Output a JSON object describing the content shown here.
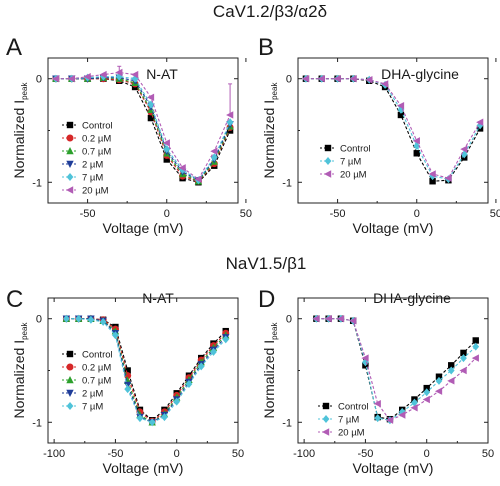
{
  "headings": {
    "top": "CaV1.2/β3/α2δ",
    "bottom": "NaV1.5/β1"
  },
  "chart_data": [
    {
      "panel": "A",
      "title": "N-AT",
      "type": "line",
      "xlabel": "Voltage (mV)",
      "ylabel": "Normalized I",
      "ylabel_sub": "peak",
      "xlim": [
        -75,
        45
      ],
      "ylim": [
        -1.2,
        0.2
      ],
      "xticks": [
        -50,
        0,
        50
      ],
      "xtick_labels": [
        "-50",
        "0",
        "50"
      ],
      "yticks": [
        0,
        -1
      ],
      "ytick_labels": [
        "0",
        "-1"
      ],
      "legend_position": "lower-left",
      "x": [
        -70,
        -60,
        -50,
        -40,
        -30,
        -20,
        -10,
        0,
        10,
        20,
        30,
        40
      ],
      "series": [
        {
          "name": "Control",
          "color": "#000000",
          "marker": "square",
          "values": [
            0,
            0,
            0,
            0,
            -0.02,
            -0.08,
            -0.38,
            -0.78,
            -0.96,
            -1.0,
            -0.84,
            -0.5
          ]
        },
        {
          "name": "0.2 µM",
          "color": "#d62728",
          "marker": "circle",
          "values": [
            0,
            0,
            0,
            0,
            -0.01,
            -0.05,
            -0.32,
            -0.74,
            -0.94,
            -0.99,
            -0.82,
            -0.47
          ]
        },
        {
          "name": "0.7 µM",
          "color": "#2ca02c",
          "marker": "triangle-up",
          "values": [
            0,
            0,
            0,
            0.01,
            0,
            -0.04,
            -0.3,
            -0.72,
            -0.92,
            -0.99,
            -0.8,
            -0.46
          ]
        },
        {
          "name": "2 µM",
          "color": "#1f3d99",
          "marker": "triangle-down",
          "values": [
            0,
            0,
            0,
            0.01,
            0.01,
            -0.02,
            -0.27,
            -0.7,
            -0.9,
            -0.98,
            -0.78,
            -0.44
          ]
        },
        {
          "name": "7 µM",
          "color": "#4fc3d9",
          "marker": "diamond",
          "values": [
            0,
            0,
            0.01,
            0.02,
            0.02,
            0,
            -0.25,
            -0.68,
            -0.88,
            -0.98,
            -0.76,
            -0.42
          ]
        },
        {
          "name": "20 µM",
          "color": "#b15cb5",
          "marker": "triangle-left",
          "values": [
            0,
            0,
            0.02,
            0.04,
            0.06,
            0.04,
            -0.18,
            -0.62,
            -0.86,
            -0.97,
            -0.7,
            -0.35
          ]
        }
      ],
      "error_bars": [
        {
          "series": "20 µM",
          "x": -30,
          "plus": 0.06
        },
        {
          "series": "20 µM",
          "x": 40,
          "plus": 0.3
        }
      ]
    },
    {
      "panel": "B",
      "title": "DHA-glycine",
      "type": "line",
      "xlabel": "Voltage (mV)",
      "ylabel": "Normalized I",
      "ylabel_sub": "peak",
      "xlim": [
        -75,
        45
      ],
      "ylim": [
        -1.2,
        0.2
      ],
      "xticks": [
        -50,
        0,
        50
      ],
      "xtick_labels": [
        "-50",
        "0",
        "50"
      ],
      "yticks": [
        0,
        -1
      ],
      "ytick_labels": [
        "0",
        "-1"
      ],
      "legend_position": "lower-left",
      "x": [
        -70,
        -60,
        -50,
        -40,
        -30,
        -20,
        -10,
        0,
        10,
        20,
        30,
        40
      ],
      "series": [
        {
          "name": "Control",
          "color": "#000000",
          "marker": "square",
          "values": [
            0,
            0,
            0,
            0,
            -0.02,
            -0.08,
            -0.35,
            -0.72,
            -0.99,
            -0.98,
            -0.76,
            -0.48
          ]
        },
        {
          "name": "7 µM",
          "color": "#4fc3d9",
          "marker": "diamond",
          "values": [
            0,
            0,
            0,
            0,
            -0.01,
            -0.06,
            -0.3,
            -0.65,
            -0.94,
            -0.97,
            -0.73,
            -0.45
          ]
        },
        {
          "name": "20 µM",
          "color": "#b15cb5",
          "marker": "triangle-left",
          "values": [
            0,
            0,
            0,
            0,
            -0.01,
            -0.05,
            -0.26,
            -0.6,
            -0.92,
            -0.96,
            -0.68,
            -0.42
          ]
        }
      ]
    },
    {
      "panel": "C",
      "title": "N-AT",
      "type": "line",
      "xlabel": "Voltage (mV)",
      "ylabel": "Normalized I",
      "ylabel_sub": "peak",
      "xlim": [
        -105,
        50
      ],
      "ylim": [
        -1.2,
        0.2
      ],
      "xticks": [
        -100,
        -50,
        0,
        50
      ],
      "xtick_labels": [
        "-100",
        "-50",
        "0",
        "50"
      ],
      "yticks": [
        0,
        -1
      ],
      "ytick_labels": [
        "0",
        "-1"
      ],
      "legend_position": "lower-left",
      "x": [
        -90,
        -80,
        -70,
        -60,
        -50,
        -40,
        -30,
        -20,
        -10,
        0,
        10,
        20,
        30,
        40
      ],
      "series": [
        {
          "name": "Control",
          "color": "#000000",
          "marker": "square",
          "values": [
            0,
            0,
            0,
            -0.01,
            -0.08,
            -0.5,
            -0.88,
            -0.98,
            -0.88,
            -0.72,
            -0.55,
            -0.38,
            -0.24,
            -0.12
          ]
        },
        {
          "name": "0.2 µM",
          "color": "#d62728",
          "marker": "circle",
          "values": [
            0,
            0,
            0,
            -0.01,
            -0.1,
            -0.55,
            -0.9,
            -0.99,
            -0.9,
            -0.74,
            -0.57,
            -0.4,
            -0.26,
            -0.14
          ]
        },
        {
          "name": "0.7 µM",
          "color": "#2ca02c",
          "marker": "triangle-up",
          "values": [
            0,
            0,
            0,
            -0.02,
            -0.12,
            -0.6,
            -0.93,
            -1.0,
            -0.92,
            -0.76,
            -0.59,
            -0.42,
            -0.28,
            -0.16
          ]
        },
        {
          "name": "2 µM",
          "color": "#1f3d99",
          "marker": "triangle-down",
          "values": [
            0,
            0,
            0,
            -0.02,
            -0.14,
            -0.64,
            -0.95,
            -1.0,
            -0.93,
            -0.78,
            -0.61,
            -0.44,
            -0.3,
            -0.18
          ]
        },
        {
          "name": "7 µM",
          "color": "#4fc3d9",
          "marker": "diamond",
          "values": [
            0,
            0,
            -0.01,
            -0.03,
            -0.16,
            -0.68,
            -0.96,
            -1.0,
            -0.95,
            -0.8,
            -0.63,
            -0.46,
            -0.32,
            -0.2
          ]
        }
      ]
    },
    {
      "panel": "D",
      "title": "DHA-glycine",
      "type": "line",
      "xlabel": "Voltage (mV)",
      "ylabel": "Normalized I",
      "ylabel_sub": "peak",
      "xlim": [
        -105,
        50
      ],
      "ylim": [
        -1.2,
        0.2
      ],
      "xticks": [
        -100,
        -50,
        0,
        50
      ],
      "xtick_labels": [
        "-100",
        "-50",
        "0",
        "50"
      ],
      "yticks": [
        0,
        -1
      ],
      "ytick_labels": [
        "0",
        "-1"
      ],
      "legend_position": "lower-left",
      "x": [
        -90,
        -80,
        -70,
        -60,
        -50,
        -40,
        -30,
        -20,
        -10,
        0,
        10,
        20,
        30,
        40
      ],
      "series": [
        {
          "name": "Control",
          "color": "#000000",
          "marker": "square",
          "values": [
            0,
            0,
            0,
            -0.02,
            -0.45,
            -0.95,
            -0.97,
            -0.88,
            -0.78,
            -0.67,
            -0.56,
            -0.45,
            -0.33,
            -0.21
          ]
        },
        {
          "name": "7 µM",
          "color": "#4fc3d9",
          "marker": "diamond",
          "values": [
            0,
            0,
            0,
            -0.02,
            -0.42,
            -0.96,
            -0.98,
            -0.9,
            -0.81,
            -0.71,
            -0.6,
            -0.5,
            -0.38,
            -0.27
          ]
        },
        {
          "name": "20 µM",
          "color": "#b15cb5",
          "marker": "triangle-left",
          "values": [
            0,
            0,
            0,
            -0.02,
            -0.38,
            -0.82,
            -0.98,
            -0.93,
            -0.86,
            -0.78,
            -0.7,
            -0.6,
            -0.5,
            -0.38
          ]
        }
      ]
    }
  ]
}
